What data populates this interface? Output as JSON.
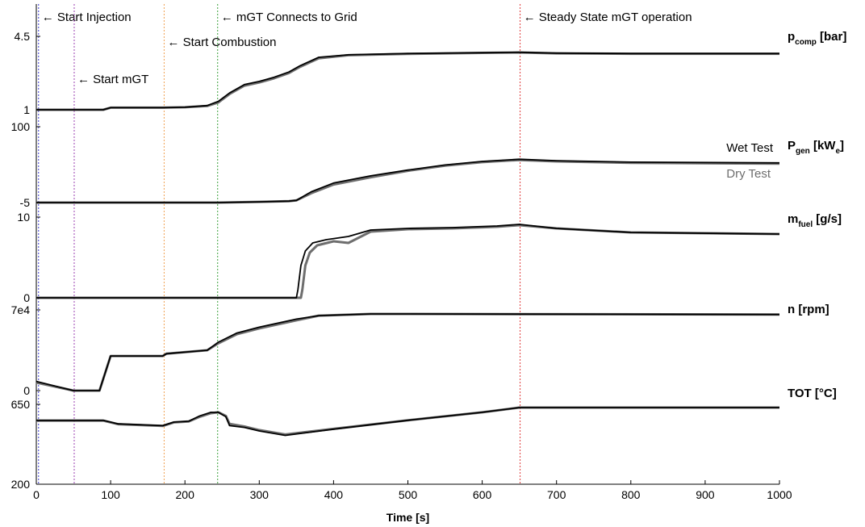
{
  "chart_data": {
    "type": "line",
    "xlabel": "Time [s]",
    "xlim": [
      0,
      1000
    ],
    "x_ticks": [
      "0",
      "100",
      "200",
      "300",
      "400",
      "500",
      "600",
      "700",
      "800",
      "900",
      "1000"
    ],
    "legend": [
      {
        "name": "Wet Test",
        "color": "#000000"
      },
      {
        "name": "Dry Test",
        "color": "#6e6e6e"
      }
    ],
    "events": [
      {
        "t": 3,
        "label": "Start Injection",
        "color": "#3a3ad0"
      },
      {
        "t": 51,
        "label": "Start mGT",
        "color": "#9b3fb0"
      },
      {
        "t": 172,
        "label": "Start Combustion",
        "color": "#f0a050"
      },
      {
        "t": 244,
        "label": "mGT Connects to Grid",
        "color": "#3aa03a"
      },
      {
        "t": 651,
        "label": "Steady State mGT operation",
        "color": "#e03a3a"
      }
    ],
    "panels": [
      {
        "id": "pcomp",
        "label_main": "p",
        "label_sub": "comp",
        "label_unit": " [bar]",
        "ymin": 1,
        "ymax": 4.5,
        "tick_labels": [
          "1",
          "4.5"
        ],
        "wet": [
          [
            0,
            1
          ],
          [
            90,
            1
          ],
          [
            100,
            1.1
          ],
          [
            170,
            1.1
          ],
          [
            200,
            1.12
          ],
          [
            230,
            1.2
          ],
          [
            245,
            1.4
          ],
          [
            260,
            1.8
          ],
          [
            280,
            2.2
          ],
          [
            300,
            2.35
          ],
          [
            320,
            2.55
          ],
          [
            340,
            2.8
          ],
          [
            355,
            3.1
          ],
          [
            380,
            3.5
          ],
          [
            420,
            3.62
          ],
          [
            500,
            3.68
          ],
          [
            600,
            3.72
          ],
          [
            650,
            3.74
          ],
          [
            700,
            3.7
          ],
          [
            800,
            3.68
          ],
          [
            1000,
            3.68
          ]
        ],
        "dry": [
          [
            0,
            1
          ],
          [
            90,
            1
          ],
          [
            100,
            1.1
          ],
          [
            170,
            1.1
          ],
          [
            200,
            1.12
          ],
          [
            230,
            1.18
          ],
          [
            245,
            1.35
          ],
          [
            260,
            1.75
          ],
          [
            280,
            2.15
          ],
          [
            300,
            2.3
          ],
          [
            320,
            2.5
          ],
          [
            340,
            2.75
          ],
          [
            355,
            3.05
          ],
          [
            380,
            3.45
          ],
          [
            420,
            3.6
          ],
          [
            500,
            3.66
          ],
          [
            600,
            3.71
          ],
          [
            650,
            3.73
          ],
          [
            700,
            3.69
          ],
          [
            800,
            3.67
          ],
          [
            1000,
            3.67
          ]
        ]
      },
      {
        "id": "pgen",
        "label_main": "P",
        "label_sub": "gen",
        "label_unit": " [kW",
        "label_unit_sub": "e",
        "label_unit_end": "]",
        "ymin": -5,
        "ymax": 100,
        "tick_labels": [
          "-5",
          "100"
        ],
        "wet": [
          [
            0,
            -5
          ],
          [
            245,
            -5
          ],
          [
            300,
            -4
          ],
          [
            340,
            -3
          ],
          [
            350,
            -2
          ],
          [
            370,
            10
          ],
          [
            400,
            22
          ],
          [
            450,
            32
          ],
          [
            500,
            40
          ],
          [
            550,
            47
          ],
          [
            600,
            52
          ],
          [
            650,
            55
          ],
          [
            700,
            53
          ],
          [
            800,
            51
          ],
          [
            1000,
            50
          ]
        ],
        "dry": [
          [
            0,
            -5
          ],
          [
            245,
            -5
          ],
          [
            300,
            -4
          ],
          [
            340,
            -3
          ],
          [
            350,
            -2
          ],
          [
            370,
            8
          ],
          [
            400,
            20
          ],
          [
            450,
            30
          ],
          [
            500,
            39
          ],
          [
            550,
            46
          ],
          [
            600,
            51
          ],
          [
            650,
            54
          ],
          [
            700,
            52
          ],
          [
            800,
            50
          ],
          [
            1000,
            49
          ]
        ]
      },
      {
        "id": "mfuel",
        "label_main": "m",
        "label_sub": "fuel",
        "label_unit": " [g/s]",
        "ymin": 0,
        "ymax": 10,
        "tick_labels": [
          "0",
          "10"
        ],
        "wet": [
          [
            0,
            0
          ],
          [
            350,
            0
          ],
          [
            352,
            1
          ],
          [
            356,
            4
          ],
          [
            362,
            5.8
          ],
          [
            372,
            6.8
          ],
          [
            390,
            7.2
          ],
          [
            420,
            7.6
          ],
          [
            450,
            8.4
          ],
          [
            500,
            8.6
          ],
          [
            560,
            8.7
          ],
          [
            620,
            8.9
          ],
          [
            650,
            9.1
          ],
          [
            700,
            8.6
          ],
          [
            800,
            8.1
          ],
          [
            1000,
            7.9
          ]
        ],
        "dry": [
          [
            0,
            0
          ],
          [
            356,
            0
          ],
          [
            358,
            1
          ],
          [
            362,
            4
          ],
          [
            368,
            5.6
          ],
          [
            378,
            6.5
          ],
          [
            400,
            7.0
          ],
          [
            420,
            6.8
          ],
          [
            450,
            8.2
          ],
          [
            500,
            8.5
          ],
          [
            560,
            8.6
          ],
          [
            620,
            8.8
          ],
          [
            650,
            9.0
          ],
          [
            700,
            8.6
          ],
          [
            800,
            8.1
          ],
          [
            1000,
            7.9
          ]
        ]
      },
      {
        "id": "n",
        "label_main": "n",
        "label_sub": "",
        "label_unit": " [rpm]",
        "ymin": 0,
        "ymax": 70000,
        "tick_labels": [
          "0",
          "7e4"
        ],
        "wet": [
          [
            0,
            8000
          ],
          [
            50,
            0
          ],
          [
            85,
            0
          ],
          [
            100,
            30000
          ],
          [
            170,
            30000
          ],
          [
            175,
            32000
          ],
          [
            230,
            35000
          ],
          [
            245,
            42000
          ],
          [
            270,
            50000
          ],
          [
            300,
            55000
          ],
          [
            350,
            62000
          ],
          [
            380,
            65000
          ],
          [
            450,
            66500
          ],
          [
            500,
            66500
          ],
          [
            1000,
            66000
          ]
        ],
        "dry": [
          [
            0,
            7000
          ],
          [
            50,
            0
          ],
          [
            85,
            0
          ],
          [
            100,
            30000
          ],
          [
            170,
            30000
          ],
          [
            175,
            32000
          ],
          [
            230,
            35000
          ],
          [
            245,
            41000
          ],
          [
            270,
            49000
          ],
          [
            300,
            54000
          ],
          [
            350,
            61000
          ],
          [
            380,
            65000
          ],
          [
            450,
            66500
          ],
          [
            500,
            66500
          ],
          [
            1000,
            66000
          ]
        ]
      },
      {
        "id": "tot",
        "label_main": "TOT [°C]",
        "label_sub": "",
        "label_unit": "",
        "ymin": 200,
        "ymax": 650,
        "tick_labels": [
          "200",
          "650"
        ],
        "wet": [
          [
            0,
            560
          ],
          [
            90,
            560
          ],
          [
            110,
            540
          ],
          [
            170,
            530
          ],
          [
            185,
            550
          ],
          [
            205,
            555
          ],
          [
            220,
            585
          ],
          [
            235,
            605
          ],
          [
            245,
            605
          ],
          [
            255,
            580
          ],
          [
            260,
            530
          ],
          [
            280,
            520
          ],
          [
            300,
            500
          ],
          [
            335,
            475
          ],
          [
            400,
            510
          ],
          [
            500,
            560
          ],
          [
            600,
            605
          ],
          [
            650,
            632
          ],
          [
            700,
            632
          ],
          [
            1000,
            632
          ]
        ],
        "dry": [
          [
            0,
            558
          ],
          [
            90,
            558
          ],
          [
            110,
            538
          ],
          [
            170,
            528
          ],
          [
            185,
            548
          ],
          [
            205,
            553
          ],
          [
            220,
            580
          ],
          [
            235,
            600
          ],
          [
            245,
            605
          ],
          [
            255,
            585
          ],
          [
            260,
            540
          ],
          [
            280,
            525
          ],
          [
            300,
            505
          ],
          [
            335,
            480
          ],
          [
            400,
            512
          ],
          [
            500,
            560
          ],
          [
            600,
            605
          ],
          [
            650,
            632
          ],
          [
            700,
            632
          ],
          [
            1000,
            632
          ]
        ]
      }
    ]
  }
}
